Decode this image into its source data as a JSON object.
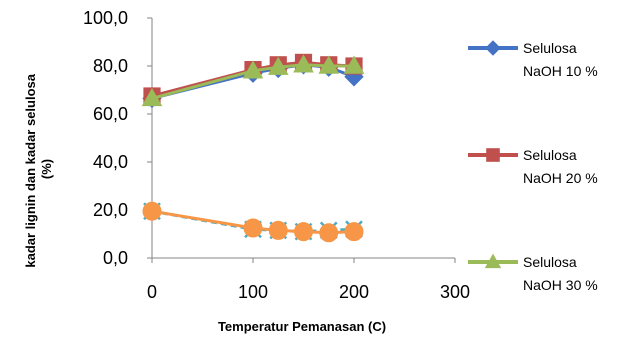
{
  "chart_data": {
    "type": "scatter",
    "xlabel": "Temperatur Pemanasan (C)",
    "ylabel_lines": [
      "kadar lignin dan kadar selulosa",
      "(%)"
    ],
    "xlim": [
      0,
      300
    ],
    "ylim": [
      0,
      100
    ],
    "x_ticks": [
      "0",
      "100",
      "200",
      "300"
    ],
    "y_ticks": [
      "0,0",
      "20,0",
      "40,0",
      "60,0",
      "80,0",
      "100,0"
    ],
    "grid": false,
    "legend_position": "right",
    "series": [
      {
        "name_lines": [
          "Selulosa",
          "NaOH 10 %"
        ],
        "color": "#4472C4",
        "marker": "diamond",
        "x": [
          0,
          100,
          125,
          150,
          175,
          200
        ],
        "y": [
          66.5,
          77.0,
          79.0,
          80.5,
          79.5,
          75.5
        ]
      },
      {
        "name_lines": [
          "Selulosa",
          "NaOH 20 %"
        ],
        "color": "#C0504D",
        "marker": "square",
        "x": [
          0,
          100,
          125,
          150,
          175,
          200
        ],
        "y": [
          67.5,
          78.5,
          80.5,
          81.5,
          80.5,
          80.0
        ]
      },
      {
        "name_lines": [
          "Selulosa",
          "NaOH 30 %"
        ],
        "color": "#9BBB59",
        "marker": "triangle",
        "x": [
          0,
          100,
          125,
          150,
          175,
          200
        ],
        "y": [
          66.5,
          78.0,
          79.5,
          80.5,
          80.0,
          80.0
        ]
      },
      {
        "color": "#4BACC6",
        "marker": "x",
        "line_style": "dashed",
        "x": [
          0,
          100,
          125,
          150,
          175,
          200
        ],
        "y": [
          19.5,
          12.0,
          11.5,
          11.0,
          11.5,
          12.0
        ]
      },
      {
        "color": "#F79646",
        "marker": "circle",
        "x": [
          0,
          100,
          125,
          150,
          175,
          200
        ],
        "y": [
          19.5,
          12.5,
          11.5,
          11.0,
          10.5,
          11.0
        ]
      }
    ]
  }
}
